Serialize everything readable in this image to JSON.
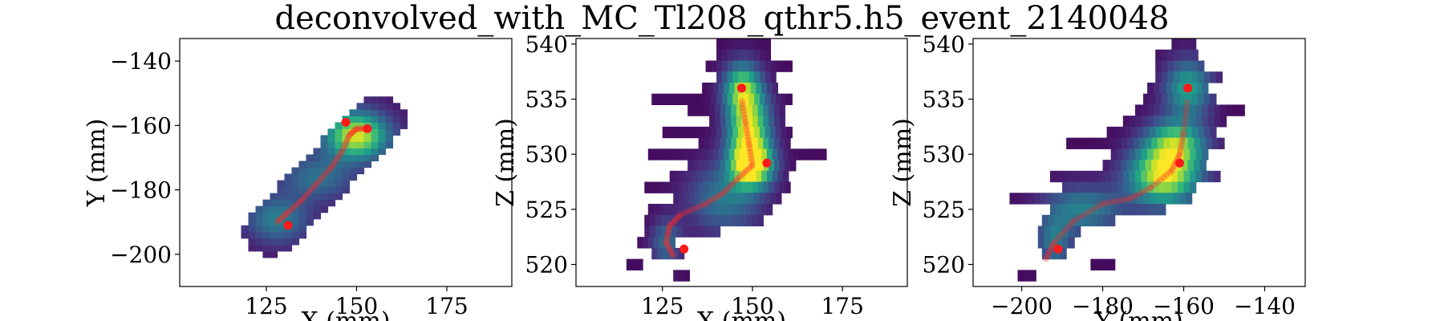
{
  "figure": {
    "title": "deconvolved_with_MC_Tl208_qthr5.h5_event_2140048"
  },
  "chart_data": [
    {
      "type": "heatmap",
      "title": "",
      "xlabel": "X (mm)",
      "ylabel": "Y (mm)",
      "xlim": [
        101,
        193
      ],
      "ylim": [
        -210,
        -133
      ],
      "xticks": [
        125,
        150,
        175
      ],
      "yticks": [
        -200,
        -180,
        -160,
        -140
      ],
      "colormap": "viridis",
      "cell_size": [
        2,
        2
      ],
      "blobs": [
        {
          "x": 150,
          "y": -163,
          "sx": 6,
          "sy": 5,
          "w": 1.0
        },
        {
          "x": 139,
          "y": -176,
          "sx": 7,
          "sy": 5,
          "w": 0.35
        },
        {
          "x": 128,
          "y": -189,
          "sx": 6,
          "sy": 5,
          "w": 0.42
        }
      ],
      "footprint": {
        "p0": [
          126,
          -193
        ],
        "p1": [
          156,
          -158
        ],
        "radius": 7.5
      },
      "track": [
        [
          128,
          -190
        ],
        [
          131,
          -187
        ],
        [
          135,
          -183
        ],
        [
          139,
          -178
        ],
        [
          143,
          -173
        ],
        [
          146,
          -168
        ],
        [
          148,
          -163
        ],
        [
          150,
          -161
        ],
        [
          153,
          -161
        ]
      ],
      "extremes": [
        [
          147,
          -159
        ],
        [
          153,
          -161
        ],
        [
          131,
          -191
        ]
      ]
    },
    {
      "type": "heatmap",
      "title": "",
      "xlabel": "X (mm)",
      "ylabel": "Z (mm)",
      "xlim": [
        101,
        193
      ],
      "ylim": [
        518,
        540.5
      ],
      "xticks": [
        125,
        150,
        175
      ],
      "yticks": [
        520,
        525,
        530,
        535,
        540
      ],
      "colormap": "viridis",
      "bins_z": [
        {
          "z": 540,
          "range": [
            140,
            154
          ]
        },
        {
          "z": 539,
          "range": [
            140,
            154
          ]
        },
        {
          "z": 538,
          "range": [
            137,
            160
          ]
        },
        {
          "z": 537,
          "range": [
            140,
            156
          ]
        },
        {
          "z": 536,
          "range": [
            136,
            157
          ]
        },
        {
          "z": 535,
          "range": [
            122,
            160
          ]
        },
        {
          "z": 534,
          "range": [
            132,
            158
          ]
        },
        {
          "z": 533,
          "range": [
            138,
            158
          ]
        },
        {
          "z": 532,
          "range": [
            125,
            160
          ]
        },
        {
          "z": 531,
          "range": [
            135,
            160
          ]
        },
        {
          "z": 530,
          "range": [
            121,
            170
          ]
        },
        {
          "z": 529,
          "range": [
            132,
            162
          ]
        },
        {
          "z": 528,
          "range": [
            127,
            160
          ]
        },
        {
          "z": 527,
          "range": [
            120,
            160
          ]
        },
        {
          "z": 526,
          "range": [
            128,
            157
          ]
        },
        {
          "z": 525,
          "range": [
            121,
            155
          ]
        },
        {
          "z": 524,
          "range": [
            120,
            152
          ]
        },
        {
          "z": 523,
          "range": [
            120,
            140
          ]
        },
        {
          "z": 522,
          "range": [
            118,
            128
          ]
        },
        {
          "z": 521,
          "range": [
            122,
            131
          ]
        },
        {
          "z": 520,
          "range": [
            115,
            119
          ]
        },
        {
          "z": 519,
          "range": [
            128,
            132
          ]
        }
      ],
      "blobs": [
        {
          "x": 149,
          "z": 532,
          "sx": 4,
          "sz": 2.6,
          "w": 1.0
        },
        {
          "x": 147,
          "z": 536,
          "sx": 3.5,
          "sz": 1.6,
          "w": 0.7
        },
        {
          "x": 150,
          "z": 529,
          "sx": 4,
          "sz": 1.3,
          "w": 0.9
        },
        {
          "x": 142,
          "z": 526,
          "sx": 7,
          "sz": 2.2,
          "w": 0.4
        },
        {
          "x": 126,
          "z": 522,
          "sx": 3,
          "sz": 1.5,
          "w": 0.35
        }
      ],
      "track": [
        [
          128,
          520.8
        ],
        [
          126,
          522
        ],
        [
          127,
          523.5
        ],
        [
          130,
          524.5
        ],
        [
          137,
          525.5
        ],
        [
          142,
          526.5
        ],
        [
          146,
          527.8
        ],
        [
          150,
          529
        ],
        [
          149,
          531
        ],
        [
          148,
          533
        ],
        [
          147,
          535
        ]
      ],
      "extremes": [
        [
          147,
          536
        ],
        [
          154,
          529.2
        ],
        [
          131,
          521.4
        ]
      ]
    },
    {
      "type": "heatmap",
      "title": "",
      "xlabel": "Y (mm)",
      "ylabel": "Z (mm)",
      "xlim": [
        -212,
        -130
      ],
      "ylim": [
        518,
        540.5
      ],
      "xticks": [
        -200,
        -180,
        -160,
        -140
      ],
      "yticks": [
        520,
        525,
        530,
        535,
        540
      ],
      "colormap": "viridis",
      "bins_z": [
        {
          "z": 540,
          "range": [
            -163,
            -158
          ]
        },
        {
          "z": 539,
          "range": [
            -167,
            -157
          ]
        },
        {
          "z": 538,
          "range": [
            -167,
            -155
          ]
        },
        {
          "z": 537,
          "range": [
            -167,
            -151
          ]
        },
        {
          "z": 536,
          "range": [
            -169,
            -154
          ]
        },
        {
          "z": 535,
          "range": [
            -170,
            -152
          ]
        },
        {
          "z": 534,
          "range": [
            -172,
            -145
          ]
        },
        {
          "z": 533,
          "range": [
            -175,
            -150
          ]
        },
        {
          "z": 532,
          "range": [
            -179,
            -152
          ]
        },
        {
          "z": 531,
          "range": [
            -189,
            -150
          ]
        },
        {
          "z": 530,
          "range": [
            -178,
            -154
          ]
        },
        {
          "z": 529,
          "range": [
            -180,
            -155
          ]
        },
        {
          "z": 528,
          "range": [
            -193,
            -152
          ]
        },
        {
          "z": 527,
          "range": [
            -190,
            -157
          ]
        },
        {
          "z": 526,
          "range": [
            -203,
            -158
          ]
        },
        {
          "z": 525,
          "range": [
            -193,
            -165
          ]
        },
        {
          "z": 524,
          "range": [
            -195,
            -177
          ]
        },
        {
          "z": 523,
          "range": [
            -196,
            -186
          ]
        },
        {
          "z": 522,
          "range": [
            -196,
            -187
          ]
        },
        {
          "z": 521,
          "range": [
            -195,
            -189
          ]
        },
        {
          "z": 520,
          "range": [
            -183,
            -178
          ]
        },
        {
          "z": 519,
          "range": [
            -201,
            -197
          ]
        }
      ],
      "blobs": [
        {
          "x": -165,
          "z": 528,
          "sx": 6,
          "sz": 1.8,
          "w": 1.0
        },
        {
          "x": -162,
          "z": 531,
          "sx": 5,
          "sz": 1.5,
          "w": 0.75
        },
        {
          "x": -159,
          "z": 536,
          "sx": 4,
          "sz": 1.8,
          "w": 0.6
        },
        {
          "x": -185,
          "z": 525,
          "sx": 7,
          "sz": 1.5,
          "w": 0.45
        },
        {
          "x": -192,
          "z": 522,
          "sx": 3,
          "sz": 1.5,
          "w": 0.4
        }
      ],
      "track": [
        [
          -194,
          520.5
        ],
        [
          -192,
          522
        ],
        [
          -187,
          524
        ],
        [
          -180,
          525.5
        ],
        [
          -173,
          526
        ],
        [
          -168,
          527
        ],
        [
          -163,
          528.5
        ],
        [
          -161,
          530
        ],
        [
          -160,
          532
        ],
        [
          -159,
          535
        ]
      ],
      "extremes": [
        [
          -159,
          536
        ],
        [
          -161,
          529.2
        ],
        [
          -191,
          521.4
        ]
      ]
    }
  ]
}
